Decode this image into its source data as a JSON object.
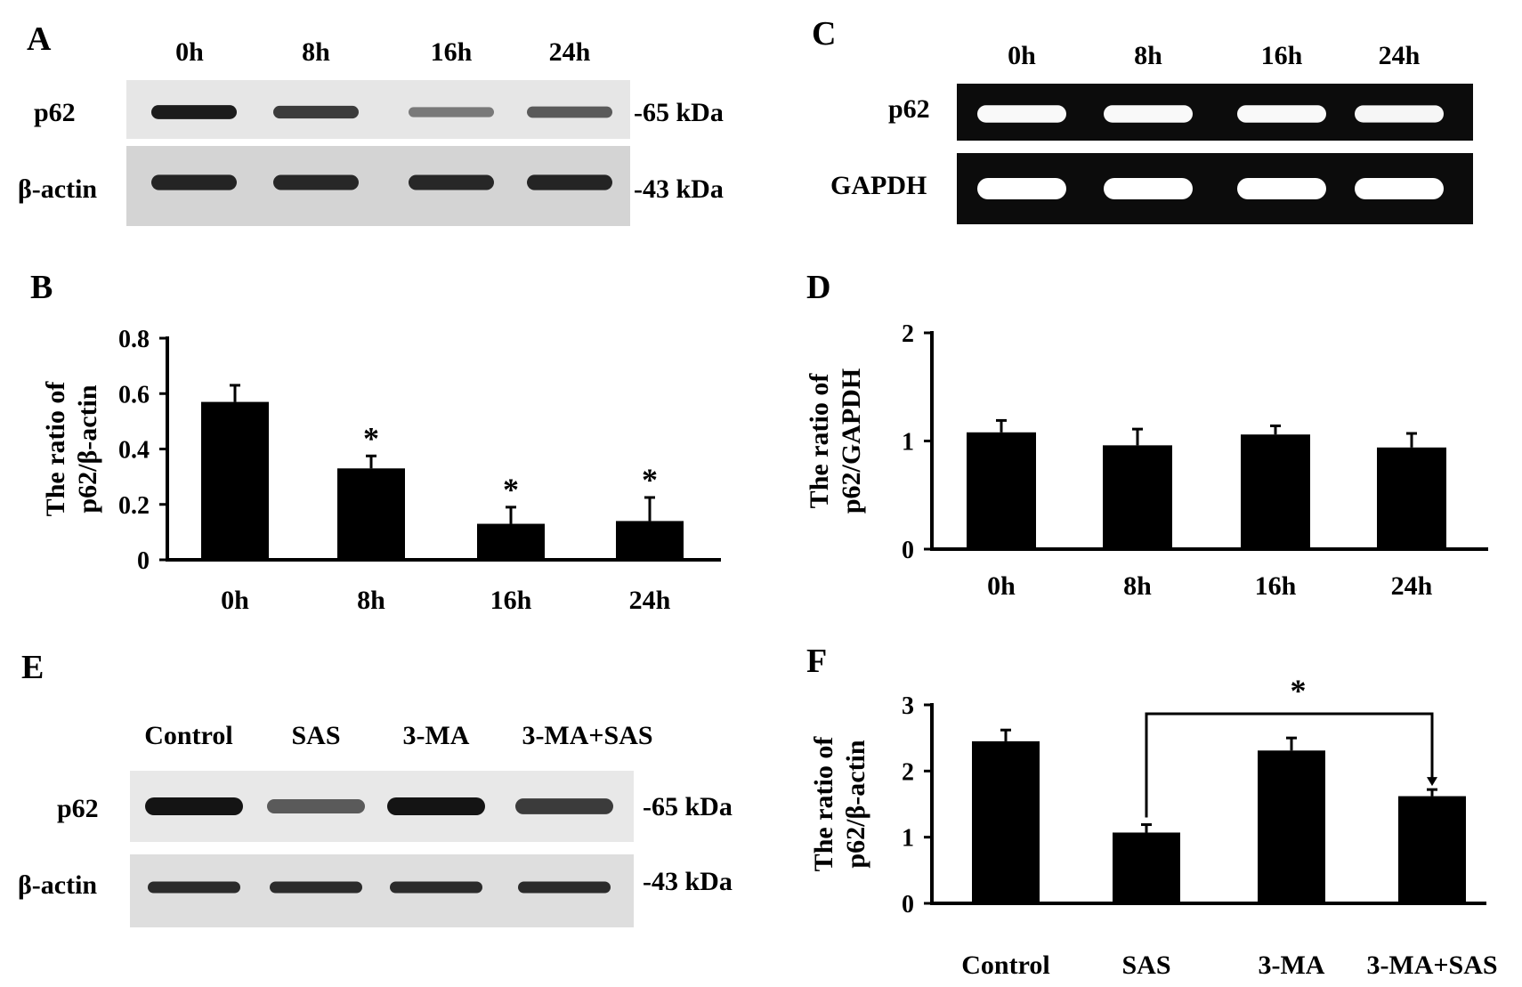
{
  "panels": {
    "A": {
      "label": "A",
      "lanes": [
        "0h",
        "8h",
        "16h",
        "24h"
      ],
      "rows": [
        {
          "name": "p62",
          "size": "-65 kDa",
          "intensity": [
            0.95,
            0.75,
            0.35,
            0.55
          ]
        },
        {
          "name": "β-actin",
          "size": "-43 kDa",
          "intensity": [
            0.9,
            0.88,
            0.88,
            0.9
          ]
        }
      ]
    },
    "C": {
      "label": "C",
      "lanes": [
        "0h",
        "8h",
        "16h",
        "24h"
      ],
      "rows": [
        {
          "name": "p62",
          "intensity": [
            0.95,
            0.95,
            0.95,
            0.92
          ]
        },
        {
          "name": "GAPDH",
          "intensity": [
            1.0,
            1.0,
            1.0,
            1.0
          ]
        }
      ]
    },
    "E": {
      "label": "E",
      "lanes": [
        "Control",
        "SAS",
        "3-MA",
        "3-MA+SAS"
      ],
      "rows": [
        {
          "name": "p62",
          "size": "-65 kDa",
          "intensity": [
            1.0,
            0.55,
            1.0,
            0.75
          ]
        },
        {
          "name": "β-actin",
          "size": "-43 kDa",
          "intensity": [
            0.85,
            0.85,
            0.85,
            0.85
          ]
        }
      ]
    }
  },
  "chart_data": [
    {
      "panel": "B",
      "type": "bar",
      "categories": [
        "0h",
        "8h",
        "16h",
        "24h"
      ],
      "values": [
        0.57,
        0.33,
        0.13,
        0.14
      ],
      "errors": [
        0.06,
        0.045,
        0.06,
        0.085
      ],
      "significance": [
        "",
        "*",
        "*",
        "*"
      ],
      "ylabel": [
        "The ratio of",
        "p62/β-actin"
      ],
      "ylim": [
        0,
        0.8
      ],
      "yticks": [
        "0",
        "0.2",
        "0.4",
        "0.6",
        "0.8"
      ],
      "ytick_values": [
        0,
        0.2,
        0.4,
        0.6,
        0.8
      ]
    },
    {
      "panel": "D",
      "type": "bar",
      "categories": [
        "0h",
        "8h",
        "16h",
        "24h"
      ],
      "values": [
        1.08,
        0.96,
        1.06,
        0.94
      ],
      "errors": [
        0.11,
        0.15,
        0.08,
        0.13
      ],
      "significance": [
        "",
        "",
        "",
        ""
      ],
      "ylabel": [
        "The ratio of",
        "p62/GAPDH"
      ],
      "ylim": [
        0,
        2
      ],
      "yticks": [
        "0",
        "1",
        "2"
      ],
      "ytick_values": [
        0,
        1,
        2
      ]
    },
    {
      "panel": "F",
      "type": "bar",
      "categories": [
        "Control",
        "SAS",
        "3-MA",
        "3-MA+SAS"
      ],
      "values": [
        2.45,
        1.07,
        2.31,
        1.62
      ],
      "errors": [
        0.17,
        0.12,
        0.19,
        0.1
      ],
      "significance": [
        "",
        "",
        "",
        ""
      ],
      "bracket": {
        "from": 1,
        "to": 3,
        "label": "*"
      },
      "ylabel": [
        "The ratio of",
        "p62/β-actin"
      ],
      "ylim": [
        0,
        3
      ],
      "yticks": [
        "0",
        "1",
        "2",
        "3"
      ],
      "ytick_values": [
        0,
        1,
        2,
        3
      ]
    }
  ]
}
